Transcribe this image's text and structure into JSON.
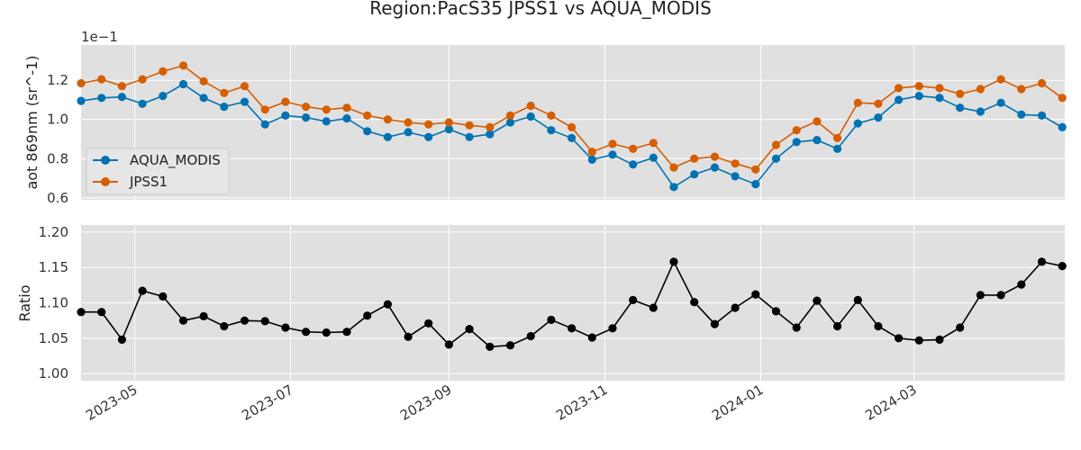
{
  "chart_data": {
    "type": "line",
    "title": "Region:PacS35 JPSS1 vs AQUA_MODIS",
    "x_ticks": [
      "2023-05",
      "2023-07",
      "2023-09",
      "2023-11",
      "2024-01",
      "2024-03"
    ],
    "x_tick_dates": [
      "2023-05-01",
      "2023-07-01",
      "2023-09-01",
      "2023-11-01",
      "2024-01-01",
      "2024-03-01"
    ],
    "x_range": [
      "2023-04-10",
      "2024-04-29"
    ],
    "grid": true,
    "panels": [
      {
        "ylabel": "aot 869nm (sr^-1)",
        "y_offset_text": "1e−1",
        "ylim": [
          0.59,
          1.38
        ],
        "y_ticks": [
          0.6,
          0.8,
          1.0,
          1.2
        ],
        "y_tick_labels": [
          "0.6",
          "0.8",
          "1.0",
          "1.2"
        ],
        "legend_position": "center-left",
        "series": [
          {
            "name": "AQUA_MODIS",
            "color": "#0072b2",
            "values": [
              1.095,
              1.11,
              1.115,
              1.08,
              1.12,
              1.18,
              1.11,
              1.065,
              1.09,
              0.975,
              1.02,
              1.01,
              0.99,
              1.005,
              0.94,
              0.91,
              0.935,
              0.91,
              0.95,
              0.91,
              0.925,
              0.985,
              1.015,
              0.945,
              0.905,
              0.795,
              0.82,
              0.77,
              0.805,
              0.655,
              0.72,
              0.755,
              0.71,
              0.67,
              0.8,
              0.885,
              0.895,
              0.85,
              0.98,
              1.01,
              1.1,
              1.12,
              1.11,
              1.06,
              1.04,
              1.085,
              1.025,
              1.02,
              0.96
            ]
          },
          {
            "name": "JPSS1",
            "color": "#d55e00",
            "values": [
              1.185,
              1.205,
              1.17,
              1.205,
              1.245,
              1.275,
              1.195,
              1.135,
              1.17,
              1.05,
              1.09,
              1.065,
              1.05,
              1.06,
              1.02,
              1.0,
              0.985,
              0.975,
              0.985,
              0.97,
              0.96,
              1.02,
              1.07,
              1.02,
              0.96,
              0.835,
              0.875,
              0.85,
              0.88,
              0.755,
              0.8,
              0.81,
              0.775,
              0.745,
              0.87,
              0.945,
              0.99,
              0.905,
              1.085,
              1.08,
              1.16,
              1.17,
              1.16,
              1.13,
              1.155,
              1.205,
              1.155,
              1.185,
              1.11
            ]
          }
        ]
      },
      {
        "ylabel": "Ratio",
        "ylim": [
          0.99,
          1.21
        ],
        "y_ticks": [
          1.0,
          1.05,
          1.1,
          1.15,
          1.2
        ],
        "y_tick_labels": [
          "1.00",
          "1.05",
          "1.10",
          "1.15",
          "1.20"
        ],
        "series": [
          {
            "name": "",
            "color": "#000000",
            "values": [
              1.087,
              1.087,
              1.048,
              1.117,
              1.109,
              1.075,
              1.081,
              1.067,
              1.075,
              1.074,
              1.065,
              1.059,
              1.058,
              1.059,
              1.082,
              1.098,
              1.052,
              1.071,
              1.041,
              1.063,
              1.038,
              1.04,
              1.053,
              1.076,
              1.064,
              1.051,
              1.064,
              1.104,
              1.093,
              1.158,
              1.101,
              1.07,
              1.093,
              1.112,
              1.088,
              1.065,
              1.103,
              1.067,
              1.104,
              1.067,
              1.05,
              1.047,
              1.048,
              1.065,
              1.111,
              1.111,
              1.126,
              1.158,
              1.152
            ]
          }
        ]
      }
    ]
  }
}
